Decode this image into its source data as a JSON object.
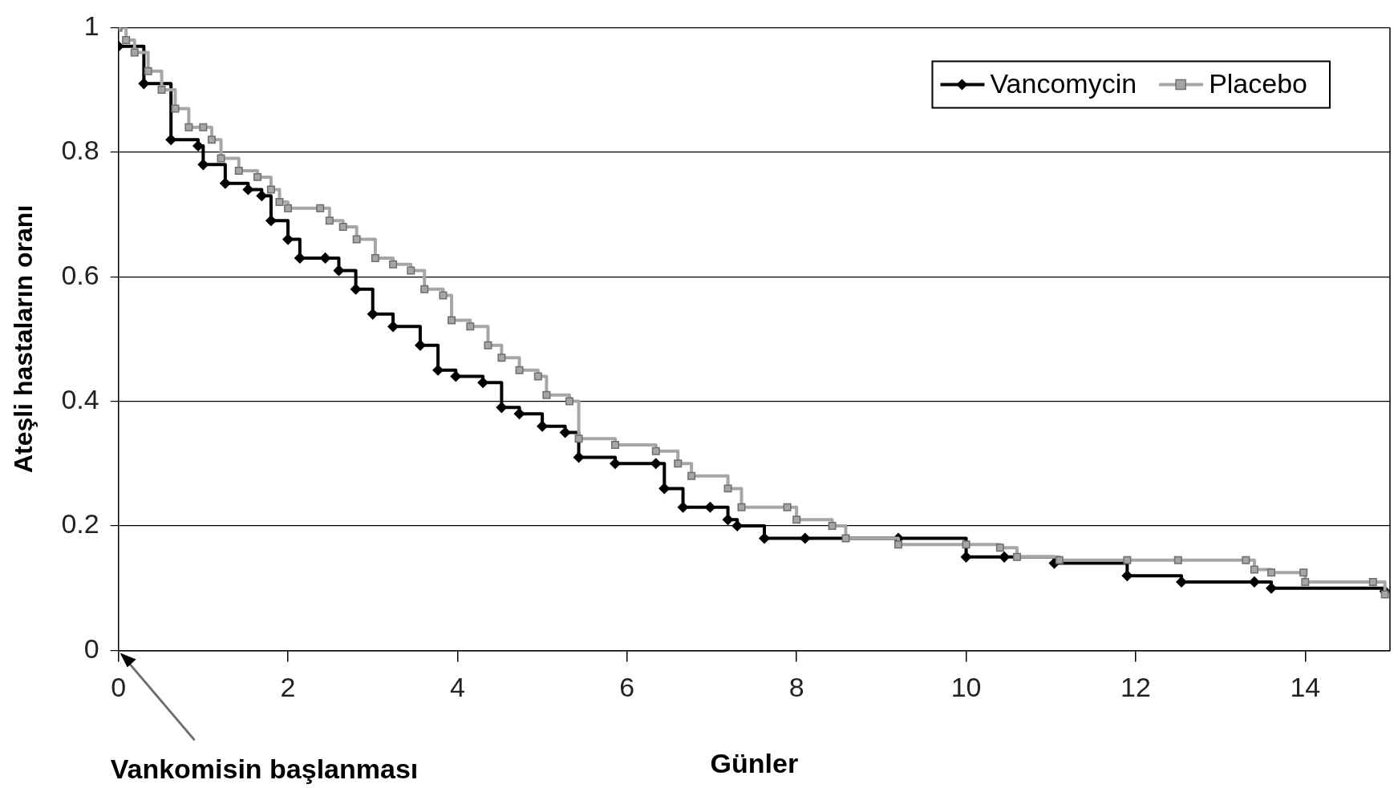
{
  "chart_data": {
    "type": "step",
    "xlabel": "Günler",
    "ylabel": "Ateşli hastaların oranı",
    "annotations": [
      "Vankomisin başlanması"
    ],
    "xlim": [
      0,
      15
    ],
    "xticks": [
      0,
      2,
      4,
      6,
      8,
      10,
      12,
      14
    ],
    "ylim": [
      0,
      1
    ],
    "yticks": [
      0,
      0.2,
      0.4,
      0.6,
      0.8,
      1
    ],
    "grid": "y",
    "legend": "top right",
    "line_style": "solid",
    "series": [
      {
        "name": "Vancomycin",
        "color": "#000000",
        "marker": "diamond",
        "x": [
          0,
          0.3,
          0.62,
          0.94,
          1.0,
          1.26,
          1.53,
          1.69,
          1.8,
          2.0,
          2.14,
          2.44,
          2.6,
          2.8,
          3.0,
          3.24,
          3.56,
          3.77,
          3.98,
          4.3,
          4.52,
          4.73,
          5.0,
          5.27,
          5.43,
          5.86,
          6.34,
          6.44,
          6.66,
          6.98,
          7.19,
          7.3,
          7.62,
          8.1,
          9.2,
          10.0,
          10.45,
          11.04,
          11.9,
          12.54,
          13.4,
          13.6,
          14.94
        ],
        "values": [
          0.97,
          0.91,
          0.82,
          0.81,
          0.78,
          0.75,
          0.74,
          0.73,
          0.69,
          0.66,
          0.63,
          0.63,
          0.61,
          0.58,
          0.54,
          0.52,
          0.49,
          0.45,
          0.44,
          0.43,
          0.39,
          0.38,
          0.36,
          0.35,
          0.31,
          0.3,
          0.3,
          0.26,
          0.23,
          0.23,
          0.21,
          0.2,
          0.18,
          0.18,
          0.18,
          0.15,
          0.15,
          0.14,
          0.12,
          0.11,
          0.11,
          0.1,
          0.095
        ]
      },
      {
        "name": "Placebo",
        "color": "#a6a6a6",
        "marker": "square",
        "x": [
          0,
          0.09,
          0.19,
          0.35,
          0.51,
          0.67,
          0.83,
          1.0,
          1.1,
          1.21,
          1.42,
          1.64,
          1.8,
          1.9,
          2.0,
          2.38,
          2.49,
          2.65,
          2.81,
          3.03,
          3.24,
          3.45,
          3.61,
          3.83,
          3.93,
          4.15,
          4.36,
          4.52,
          4.73,
          4.95,
          5.05,
          5.32,
          5.43,
          5.86,
          6.34,
          6.6,
          6.76,
          7.19,
          7.35,
          7.89,
          8.0,
          8.42,
          8.58,
          9.2,
          10.0,
          10.4,
          10.6,
          11.1,
          11.9,
          12.5,
          13.3,
          13.4,
          13.6,
          13.98,
          14.0,
          14.8,
          14.94
        ],
        "values": [
          1.0,
          0.98,
          0.96,
          0.93,
          0.9,
          0.87,
          0.84,
          0.84,
          0.82,
          0.79,
          0.77,
          0.76,
          0.74,
          0.72,
          0.71,
          0.71,
          0.69,
          0.68,
          0.66,
          0.63,
          0.62,
          0.61,
          0.58,
          0.57,
          0.53,
          0.52,
          0.49,
          0.47,
          0.45,
          0.44,
          0.41,
          0.4,
          0.34,
          0.33,
          0.32,
          0.3,
          0.28,
          0.26,
          0.23,
          0.23,
          0.21,
          0.2,
          0.18,
          0.17,
          0.17,
          0.165,
          0.15,
          0.145,
          0.145,
          0.145,
          0.145,
          0.13,
          0.125,
          0.125,
          0.11,
          0.11,
          0.09
        ]
      }
    ]
  }
}
